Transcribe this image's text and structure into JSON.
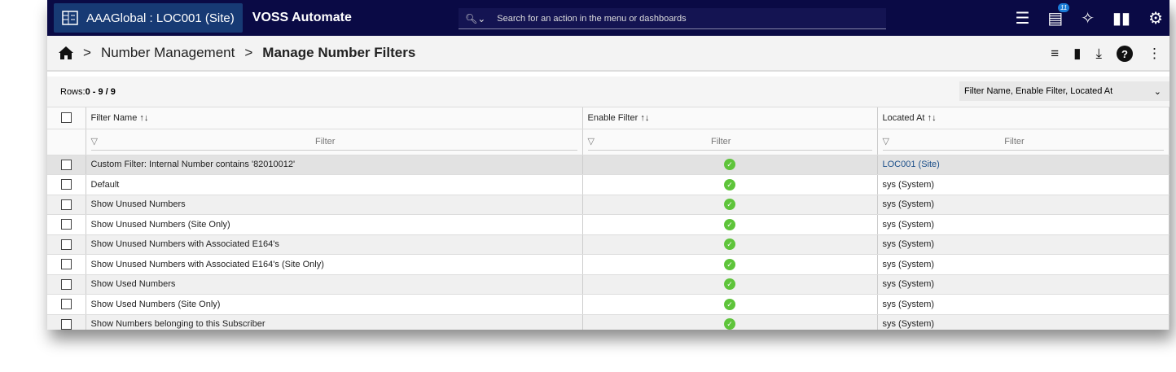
{
  "topbar": {
    "context": "AAAGlobal : LOC001 (Site)",
    "brand": "VOSS Automate",
    "search_placeholder": "Search for an action in the menu or dashboards",
    "notification_count": "11",
    "icons": [
      "list-numbered-icon",
      "chat-icon",
      "sparkle-icon",
      "book-icon",
      "gear-icon"
    ]
  },
  "breadcrumb": {
    "items": [
      "Number Management",
      "Manage Number Filters"
    ]
  },
  "toolbar": {
    "icons": [
      "filter-lines-icon",
      "trash-icon",
      "download-icon",
      "help-icon",
      "more-vert-icon"
    ]
  },
  "table": {
    "rows_label": "Rows: ",
    "rows_value": "0 - 9 / 9",
    "column_selector": "Filter Name, Enable Filter, Located At",
    "columns": [
      "Filter Name",
      "Enable Filter",
      "Located At"
    ],
    "sort_glyph": "↑↓",
    "filter_placeholder": "Filter",
    "rows": [
      {
        "name": "Custom Filter: Internal Number contains '82010012'",
        "enabled": true,
        "located": "LOC001 (Site)",
        "link": true
      },
      {
        "name": "Default",
        "enabled": true,
        "located": "sys (System)"
      },
      {
        "name": "Show Unused Numbers",
        "enabled": true,
        "located": "sys (System)"
      },
      {
        "name": "Show Unused Numbers (Site Only)",
        "enabled": true,
        "located": "sys (System)"
      },
      {
        "name": "Show Unused Numbers with Associated E164's",
        "enabled": true,
        "located": "sys (System)"
      },
      {
        "name": "Show Unused Numbers with Associated E164's (Site Only)",
        "enabled": true,
        "located": "sys (System)"
      },
      {
        "name": "Show Used Numbers",
        "enabled": true,
        "located": "sys (System)"
      },
      {
        "name": "Show Used Numbers (Site Only)",
        "enabled": true,
        "located": "sys (System)"
      },
      {
        "name": "Show Numbers belonging to this Subscriber",
        "enabled": true,
        "located": "sys (System)"
      }
    ]
  },
  "colors": {
    "topbar": "#0a0a45",
    "context": "#173a74",
    "enabled": "#5ec43a",
    "link": "#1b4f8a"
  }
}
